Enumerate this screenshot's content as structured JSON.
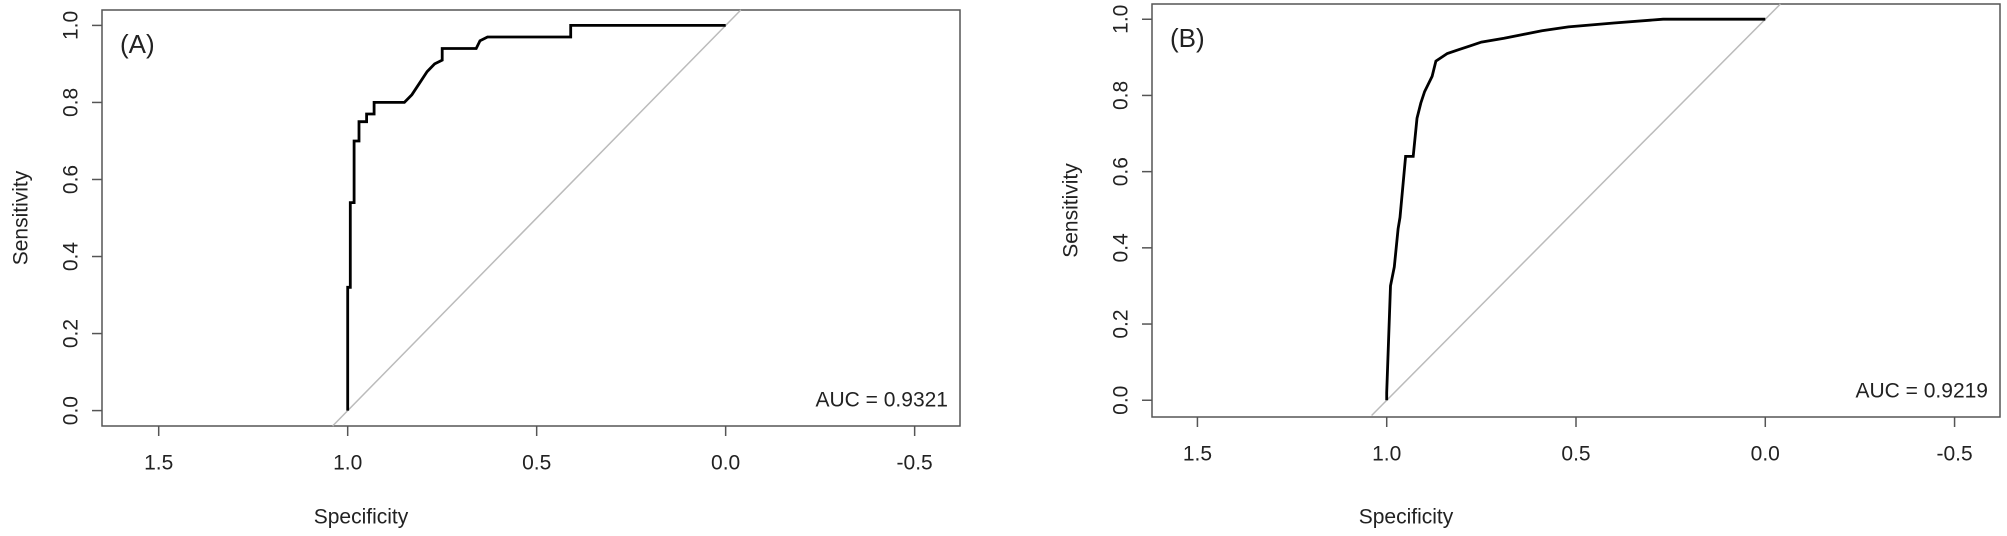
{
  "chart_data": [
    {
      "type": "line",
      "title": "(A)",
      "annotation": "AUC = 0.9321",
      "xlabel": "Specificity",
      "ylabel": "Sensitivity",
      "xlim": [
        1.65,
        -0.62
      ],
      "ylim": [
        -0.04,
        1.04
      ],
      "xticks": [
        1.5,
        {
          "value": 1,
          "label": "1.0"
        },
        0.5,
        {
          "value": 0,
          "label": "0.0"
        },
        -0.5
      ],
      "yticks": [
        {
          "value": 0,
          "label": "0.0"
        },
        0.2,
        0.4,
        0.6,
        0.8,
        {
          "value": 1,
          "label": "1.0"
        }
      ],
      "series": [
        {
          "color": "#bbbbbb",
          "x": [
            1.04,
            -0.04
          ],
          "y": [
            -0.04,
            1.04
          ]
        },
        {
          "color": "#000000",
          "x": [
            1,
            1,
            0.993,
            0.993,
            0.983,
            0.983,
            0.97,
            0.97,
            0.95,
            0.95,
            0.93,
            0.93,
            0.85,
            0.83,
            0.81,
            0.79,
            0.77,
            0.75,
            0.75,
            0.66,
            0.65,
            0.63,
            0.41,
            0.41,
            0
          ],
          "y": [
            0,
            0.32,
            0.32,
            0.54,
            0.54,
            0.7,
            0.7,
            0.75,
            0.75,
            0.77,
            0.77,
            0.8,
            0.8,
            0.82,
            0.85,
            0.88,
            0.9,
            0.91,
            0.94,
            0.94,
            0.96,
            0.97,
            0.97,
            1,
            1
          ]
        }
      ]
    },
    {
      "type": "line",
      "title": "(B)",
      "annotation": "AUC = 0.9219",
      "xlabel": "Specificity",
      "ylabel": "Sensitivity",
      "xlim": [
        1.62,
        -0.62
      ],
      "ylim": [
        -0.044,
        1.04
      ],
      "xticks": [
        1.5,
        {
          "value": 1,
          "label": "1.0"
        },
        0.5,
        {
          "value": 0,
          "label": "0.0"
        },
        -0.5
      ],
      "yticks": [
        {
          "value": 0,
          "label": "0.0"
        },
        0.2,
        0.4,
        0.6,
        0.8,
        {
          "value": 1,
          "label": "1.0"
        }
      ],
      "series": [
        {
          "color": "#bbbbbb",
          "x": [
            1.04,
            -0.04
          ],
          "y": [
            -0.04,
            1.04
          ]
        },
        {
          "color": "#000000",
          "x": [
            1,
            1,
            0.99,
            0.98,
            0.97,
            0.965,
            0.95,
            0.93,
            0.92,
            0.91,
            0.9,
            0.88,
            0.87,
            0.84,
            0.81,
            0.78,
            0.75,
            0.69,
            0.64,
            0.59,
            0.52,
            0.4,
            0.27,
            0
          ],
          "y": [
            0,
            0.02,
            0.3,
            0.35,
            0.45,
            0.48,
            0.64,
            0.64,
            0.74,
            0.78,
            0.81,
            0.85,
            0.89,
            0.91,
            0.92,
            0.93,
            0.94,
            0.95,
            0.96,
            0.97,
            0.98,
            0.99,
            1,
            1
          ]
        }
      ]
    }
  ]
}
